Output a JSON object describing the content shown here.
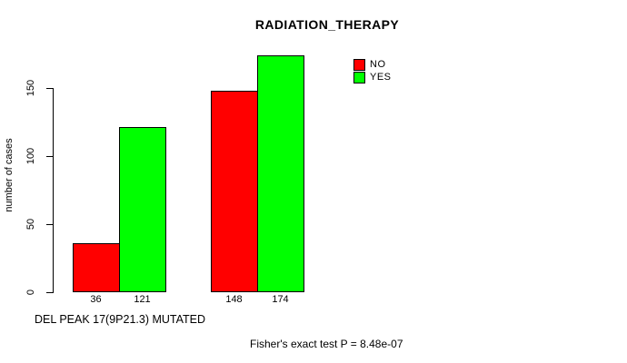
{
  "chart_data": {
    "type": "bar",
    "title": "RADIATION_THERAPY",
    "ylabel": "number of cases",
    "xlabel": "DEL PEAK 17(9P21.3) MUTATED",
    "footnote": "Fisher's exact test P = 8.48e-07",
    "ylim": [
      0,
      175
    ],
    "yticks": [
      0,
      50,
      100,
      150
    ],
    "grid": false,
    "legend_position": "top-right",
    "group_labels": [
      "",
      ""
    ],
    "series": [
      {
        "name": "NO",
        "color": "#ff0000",
        "values": [
          36,
          148
        ]
      },
      {
        "name": "YES",
        "color": "#00ff00",
        "values": [
          121,
          174
        ]
      }
    ],
    "bar_value_labels": [
      "36",
      "121",
      "148",
      "174"
    ],
    "axis_color": "#000000",
    "text_color": "#000000",
    "background_color": "#ffffff"
  }
}
